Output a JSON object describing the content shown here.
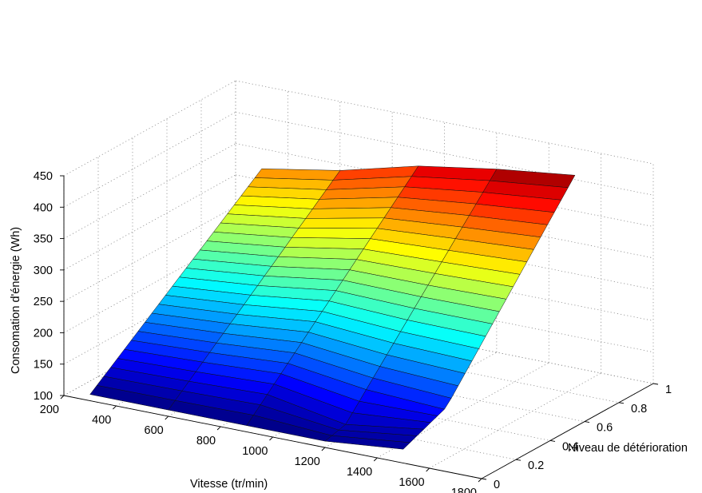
{
  "chart_data": {
    "type": "surface3d",
    "xlabel": "Vitesse (tr/min)",
    "ylabel": "Niveau de détérioration",
    "zlabel": "Consomation d'énergie  (Wh)",
    "xlim": [
      200,
      1800
    ],
    "ylim": [
      0,
      1
    ],
    "zlim": [
      100,
      450
    ],
    "x_ticks": [
      200,
      400,
      600,
      800,
      1000,
      1200,
      1400,
      1600,
      1800
    ],
    "y_ticks": [
      0,
      0.2,
      0.4,
      0.6,
      0.8,
      1
    ],
    "z_ticks": [
      100,
      150,
      200,
      250,
      300,
      350,
      400,
      450
    ],
    "x_tick_labels": [
      "200",
      "400",
      "600",
      "800",
      "1000",
      "1200",
      "1400",
      "1600",
      "1800"
    ],
    "y_tick_labels": [
      "0",
      "0.2",
      "0.4",
      "0.6",
      "0.8",
      "1"
    ],
    "z_tick_labels": [
      "100",
      "150",
      "200",
      "250",
      "300",
      "350",
      "400",
      "450"
    ],
    "grid": true,
    "colormap": "jet",
    "x": [
      300,
      600,
      900,
      1200,
      1500
    ],
    "y_steps": 25,
    "z_at_min_deterioration": [
      110,
      110,
      110,
      110,
      122
    ],
    "z_at_max_deterioration": [
      318,
      340,
      372,
      392,
      407
    ]
  }
}
